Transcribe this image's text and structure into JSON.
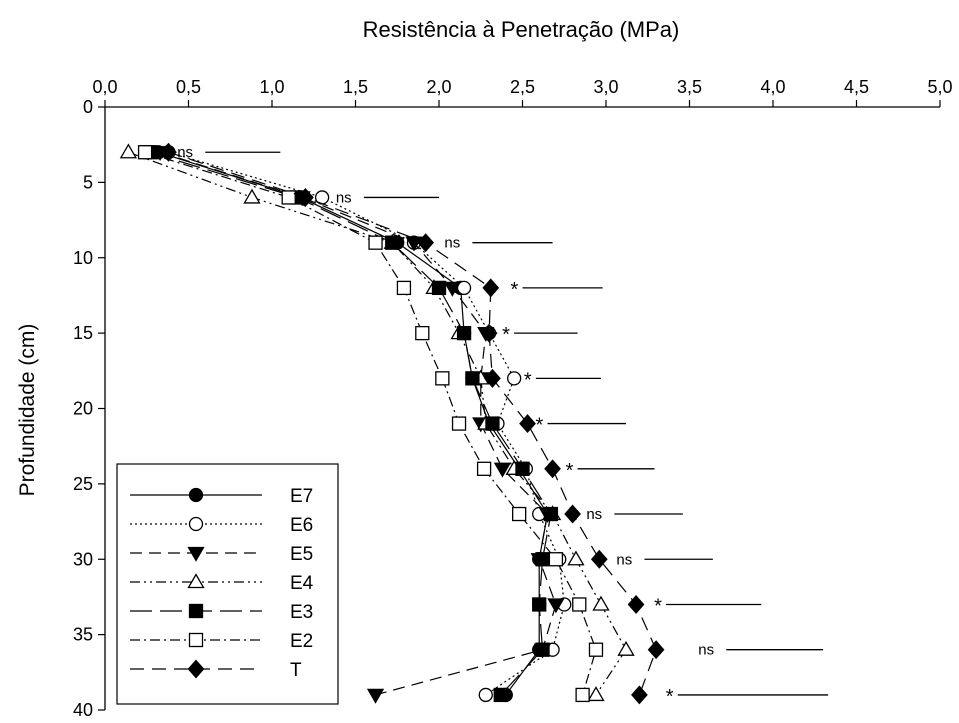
{
  "chart_data": {
    "type": "line",
    "title": "Resistência à Penetração (MPa)",
    "xlabel": "Resistência à Penetração (MPa)",
    "ylabel": "Profundidade (cm)",
    "x_axis_position": "top",
    "y_axis_inverted": true,
    "xlim": [
      0,
      5.0
    ],
    "ylim": [
      0,
      40
    ],
    "x_ticks": [
      "0,0",
      "0,5",
      "1,0",
      "1,5",
      "2,0",
      "2,5",
      "3,0",
      "3,5",
      "4,0",
      "4,5",
      "5,0"
    ],
    "y_ticks": [
      "0",
      "5",
      "10",
      "15",
      "20",
      "25",
      "30",
      "35",
      "40"
    ],
    "grid": false,
    "legend_position": "bottom-left",
    "depths": [
      3,
      6,
      9,
      12,
      15,
      18,
      21,
      24,
      27,
      30,
      33,
      36,
      39
    ],
    "series": [
      {
        "name": "E7",
        "marker": "circle-filled",
        "dash": "",
        "x": [
          0.32,
          1.17,
          1.75,
          2.13,
          2.15,
          2.2,
          2.3,
          2.48,
          2.65,
          2.6,
          2.6,
          2.6,
          2.4
        ]
      },
      {
        "name": "E6",
        "marker": "circle-open",
        "dash": "2,3",
        "x": [
          0.38,
          1.3,
          1.85,
          2.15,
          2.3,
          2.45,
          2.35,
          2.52,
          2.6,
          2.72,
          2.75,
          2.68,
          2.28
        ]
      },
      {
        "name": "E5",
        "marker": "triangle-down-filled",
        "dash": "12,7",
        "x": [
          0.33,
          1.18,
          1.85,
          2.08,
          2.28,
          2.25,
          2.25,
          2.38,
          2.65,
          2.6,
          2.7,
          2.62,
          1.62
        ]
      },
      {
        "name": "E4",
        "marker": "triangle-up-open",
        "dash": "10,4,2,4,2,4",
        "x": [
          0.14,
          0.88,
          1.72,
          1.97,
          2.12,
          2.25,
          2.28,
          2.45,
          2.68,
          2.82,
          2.97,
          3.12,
          2.94
        ]
      },
      {
        "name": "E3",
        "marker": "square-filled",
        "dash": "22,8",
        "x": [
          0.27,
          1.15,
          1.72,
          2.0,
          2.15,
          2.2,
          2.32,
          2.5,
          2.67,
          2.62,
          2.6,
          2.62,
          2.37
        ]
      },
      {
        "name": "E2",
        "marker": "square-open",
        "dash": "10,4,2,4",
        "x": [
          0.24,
          1.1,
          1.62,
          1.79,
          1.9,
          2.02,
          2.12,
          2.27,
          2.48,
          2.7,
          2.84,
          2.94,
          2.86
        ]
      },
      {
        "name": "T",
        "marker": "diamond-filled",
        "dash": "14,8",
        "x": [
          0.38,
          1.2,
          1.92,
          2.31,
          2.3,
          2.32,
          2.53,
          2.68,
          2.8,
          2.96,
          3.18,
          3.3,
          3.2
        ]
      }
    ],
    "annotations": [
      {
        "depth": 3,
        "label": "ns",
        "bar": [
          0.6,
          1.05
        ]
      },
      {
        "depth": 6,
        "label": "ns",
        "bar": [
          1.55,
          2.0
        ]
      },
      {
        "depth": 9,
        "label": "ns",
        "bar": [
          2.2,
          2.68
        ]
      },
      {
        "depth": 12,
        "label": "*",
        "bar": [
          2.5,
          2.98
        ]
      },
      {
        "depth": 15,
        "label": "*",
        "bar": [
          2.45,
          2.83
        ]
      },
      {
        "depth": 18,
        "label": "*",
        "bar": [
          2.58,
          2.97
        ]
      },
      {
        "depth": 21,
        "label": "*",
        "bar": [
          2.65,
          3.12
        ]
      },
      {
        "depth": 24,
        "label": "*",
        "bar": [
          2.83,
          3.29
        ]
      },
      {
        "depth": 27,
        "label": "ns",
        "bar": [
          3.05,
          3.46
        ]
      },
      {
        "depth": 30,
        "label": "ns",
        "bar": [
          3.23,
          3.64
        ]
      },
      {
        "depth": 33,
        "label": "*",
        "bar": [
          3.36,
          3.93
        ]
      },
      {
        "depth": 36,
        "label": "ns",
        "bar": [
          3.72,
          4.3
        ]
      },
      {
        "depth": 39,
        "label": "*",
        "bar": [
          3.43,
          4.33
        ]
      }
    ]
  }
}
